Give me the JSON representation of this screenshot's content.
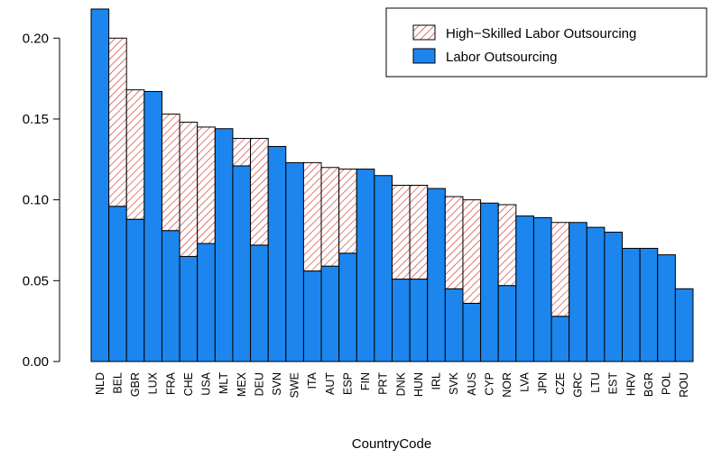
{
  "chart_data": {
    "type": "stacked_bar",
    "x_label": "CountryCode",
    "categories": [
      "NLD",
      "BEL",
      "GBR",
      "LUX",
      "FRA",
      "CHE",
      "USA",
      "MLT",
      "MEX",
      "DEU",
      "SVN",
      "SWE",
      "ITA",
      "AUT",
      "ESP",
      "FIN",
      "PRT",
      "DNK",
      "HUN",
      "IRL",
      "SVK",
      "AUS",
      "CYP",
      "NOR",
      "LVA",
      "JPN",
      "CZE",
      "GRC",
      "LTU",
      "EST",
      "HRV",
      "BGR",
      "POL",
      "ROU"
    ],
    "series": [
      {
        "name": "Labor Outsourcing",
        "color": "#1c86ee",
        "pattern": "solid",
        "values": [
          0.218,
          0.096,
          0.088,
          0.167,
          0.081,
          0.065,
          0.073,
          0.144,
          0.121,
          0.072,
          0.133,
          0.123,
          0.056,
          0.059,
          0.067,
          0.119,
          0.115,
          0.051,
          0.051,
          0.107,
          0.045,
          0.036,
          0.098,
          0.047,
          0.09,
          0.089,
          0.028,
          0.086,
          0.083,
          0.08,
          0.07,
          0.07,
          0.066,
          0.045
        ]
      },
      {
        "name": "High−Skilled Labor Outsourcing",
        "color": "#cd3333",
        "pattern": "hatch",
        "values": [
          null,
          0.104,
          0.08,
          null,
          0.072,
          0.083,
          0.072,
          null,
          0.017,
          0.066,
          null,
          null,
          0.067,
          0.061,
          0.052,
          null,
          null,
          0.058,
          0.058,
          null,
          0.057,
          0.064,
          null,
          0.05,
          null,
          null,
          0.058,
          null,
          null,
          null,
          null,
          null,
          null,
          null
        ]
      }
    ],
    "ylim": [
      0,
      0.218
    ],
    "yticks": [
      {
        "value": 0,
        "label": "0.00"
      },
      {
        "value": 0.05,
        "label": "0.05"
      },
      {
        "value": 0.1,
        "label": "0.10"
      },
      {
        "value": 0.15,
        "label": "0.15"
      },
      {
        "value": 0.2,
        "label": "0.20"
      }
    ],
    "legend_position": "top-right"
  }
}
